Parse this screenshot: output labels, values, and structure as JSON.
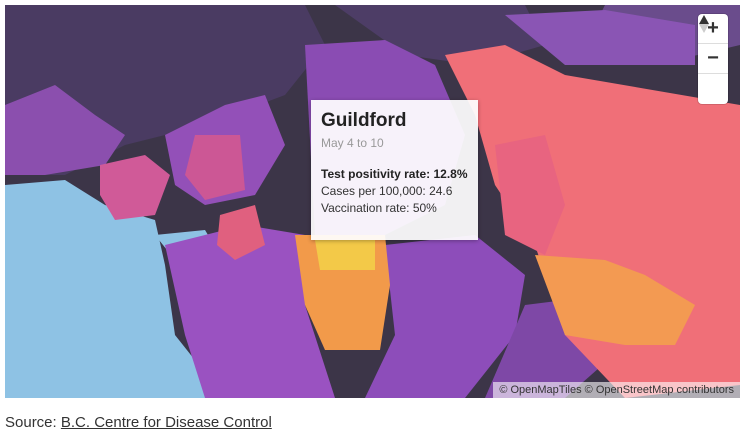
{
  "tooltip": {
    "title": "Guildford",
    "date": "May 4 to 10",
    "lines": [
      "Test positivity rate: 12.8%",
      "Cases per 100,000: 24.6",
      "Vaccination rate: 50%"
    ]
  },
  "controls": {
    "zoom_in": "+",
    "zoom_out": "−"
  },
  "attribution": "© OpenMapTiles © OpenStreetMap contributors",
  "source": {
    "prefix": "Source: ",
    "link": "B.C. Centre for Disease Control"
  }
}
